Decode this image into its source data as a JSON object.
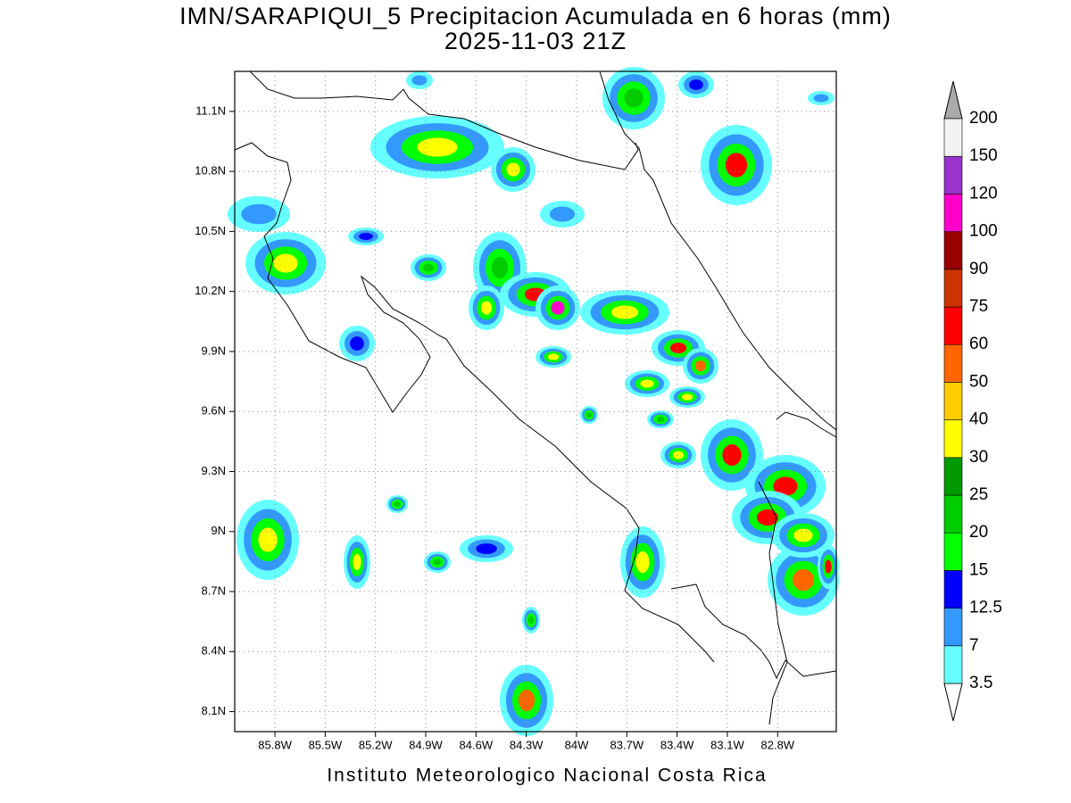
{
  "header": {
    "title": "IMN/SARAPIQUI_5 Precipitacion Acumulada en 6 horas (mm)",
    "subtitle": "2025-11-03 21Z"
  },
  "map": {
    "xlim": [
      -86.04,
      -82.45
    ],
    "ylim": [
      8.0,
      11.3
    ],
    "grid": true,
    "xticks": [
      {
        "value": -85.8,
        "label": "85.8W"
      },
      {
        "value": -85.5,
        "label": "85.5W"
      },
      {
        "value": -85.2,
        "label": "85.2W"
      },
      {
        "value": -84.9,
        "label": "84.9W"
      },
      {
        "value": -84.6,
        "label": "84.6W"
      },
      {
        "value": -84.3,
        "label": "84.3W"
      },
      {
        "value": -84.0,
        "label": "84W"
      },
      {
        "value": -83.7,
        "label": "83.7W"
      },
      {
        "value": -83.4,
        "label": "83.4W"
      },
      {
        "value": -83.1,
        "label": "83.1W"
      },
      {
        "value": -82.8,
        "label": "82.8W"
      }
    ],
    "yticks": [
      {
        "value": 8.1,
        "label": "8.1N"
      },
      {
        "value": 8.4,
        "label": "8.4N"
      },
      {
        "value": 8.7,
        "label": "8.7N"
      },
      {
        "value": 9.0,
        "label": "9N"
      },
      {
        "value": 9.3,
        "label": "9.3N"
      },
      {
        "value": 9.6,
        "label": "9.6N"
      },
      {
        "value": 9.9,
        "label": "9.9N"
      },
      {
        "value": 10.2,
        "label": "10.2N"
      },
      {
        "value": 10.5,
        "label": "10.5N"
      },
      {
        "value": 10.8,
        "label": "10.8N"
      },
      {
        "value": 11.1,
        "label": "11.1N"
      }
    ]
  },
  "colorbar": {
    "levels": [
      3.5,
      7,
      12.5,
      15,
      20,
      25,
      30,
      40,
      50,
      60,
      75,
      90,
      100,
      120,
      150,
      200
    ],
    "colors": [
      "#66ffff",
      "#3399ff",
      "#0000ff",
      "#00ff00",
      "#00cc00",
      "#009900",
      "#ffff00",
      "#ffcc00",
      "#ff6600",
      "#ff0000",
      "#cc3300",
      "#990000",
      "#ff00cc",
      "#9933cc",
      "#f2f2f2"
    ],
    "under_color": "#ffffff",
    "over_color": "#aaaaaa"
  },
  "footer": "Instituto Meteorologico Nacional Costa Rica"
}
